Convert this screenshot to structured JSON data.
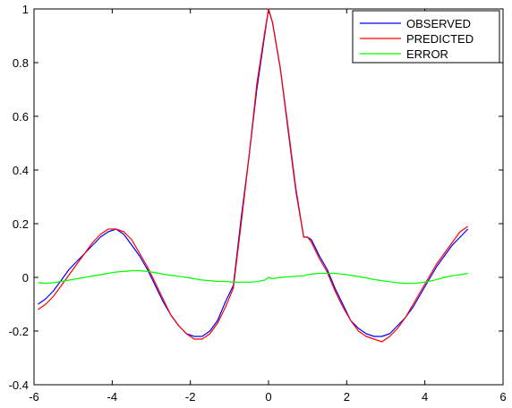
{
  "chart_data": {
    "type": "line",
    "title": "",
    "xlabel": "",
    "ylabel": "",
    "xlim": [
      -6,
      6
    ],
    "ylim": [
      -0.4,
      1
    ],
    "xticks": [
      -6,
      -4,
      -2,
      0,
      2,
      4,
      6
    ],
    "yticks": [
      -0.4,
      -0.2,
      0,
      0.2,
      0.4,
      0.6,
      0.8,
      1
    ],
    "xtick_labels": [
      "-6",
      "-4",
      "-2",
      "0",
      "2",
      "4",
      "6"
    ],
    "ytick_labels": [
      "-0.4",
      "-0.2",
      "0",
      "0.2",
      "0.4",
      "0.6",
      "0.8",
      "1"
    ],
    "grid": false,
    "legend_position": "top-right",
    "series": [
      {
        "name": "OBSERVED",
        "color": "#0000ff",
        "x": [
          -5.9,
          -5.7,
          -5.5,
          -5.3,
          -5.1,
          -4.9,
          -4.7,
          -4.5,
          -4.3,
          -4.1,
          -3.9,
          -3.7,
          -3.5,
          -3.3,
          -3.1,
          -2.9,
          -2.7,
          -2.5,
          -2.3,
          -2.1,
          -1.9,
          -1.7,
          -1.5,
          -1.3,
          -1.1,
          -0.9,
          -0.7,
          -0.5,
          -0.3,
          -0.1,
          0.0,
          0.1,
          0.3,
          0.5,
          0.7,
          0.9,
          1.0,
          1.1,
          1.3,
          1.5,
          1.7,
          1.9,
          2.1,
          2.3,
          2.5,
          2.7,
          2.9,
          3.1,
          3.3,
          3.5,
          3.7,
          3.9,
          4.1,
          4.3,
          4.5,
          4.7,
          4.9,
          5.1
        ],
        "values": [
          -0.1,
          -0.08,
          -0.05,
          -0.01,
          0.03,
          0.06,
          0.09,
          0.12,
          0.15,
          0.17,
          0.18,
          0.16,
          0.12,
          0.08,
          0.03,
          -0.03,
          -0.09,
          -0.14,
          -0.18,
          -0.21,
          -0.22,
          -0.22,
          -0.2,
          -0.16,
          -0.09,
          -0.03,
          0.22,
          0.45,
          0.7,
          0.9,
          1.0,
          0.95,
          0.78,
          0.55,
          0.32,
          0.15,
          0.15,
          0.14,
          0.08,
          0.03,
          -0.04,
          -0.1,
          -0.16,
          -0.19,
          -0.21,
          -0.22,
          -0.22,
          -0.21,
          -0.18,
          -0.15,
          -0.11,
          -0.06,
          -0.01,
          0.04,
          0.08,
          0.12,
          0.15,
          0.18
        ]
      },
      {
        "name": "PREDICTED",
        "color": "#ff0000",
        "x": [
          -5.9,
          -5.7,
          -5.5,
          -5.3,
          -5.1,
          -4.9,
          -4.7,
          -4.5,
          -4.3,
          -4.1,
          -3.9,
          -3.7,
          -3.5,
          -3.3,
          -3.1,
          -2.9,
          -2.7,
          -2.5,
          -2.3,
          -2.1,
          -1.9,
          -1.7,
          -1.5,
          -1.3,
          -1.1,
          -0.9,
          -0.7,
          -0.5,
          -0.3,
          -0.1,
          0.0,
          0.1,
          0.3,
          0.5,
          0.7,
          0.9,
          1.0,
          1.1,
          1.3,
          1.5,
          1.7,
          1.9,
          2.1,
          2.3,
          2.5,
          2.7,
          2.9,
          3.1,
          3.3,
          3.5,
          3.7,
          3.9,
          4.1,
          4.3,
          4.5,
          4.7,
          4.9,
          5.1
        ],
        "values": [
          -0.12,
          -0.1,
          -0.07,
          -0.03,
          0.01,
          0.05,
          0.09,
          0.13,
          0.16,
          0.18,
          0.18,
          0.17,
          0.14,
          0.09,
          0.04,
          -0.02,
          -0.08,
          -0.14,
          -0.18,
          -0.21,
          -0.23,
          -0.23,
          -0.21,
          -0.17,
          -0.11,
          -0.04,
          0.2,
          0.45,
          0.72,
          0.91,
          1.0,
          0.95,
          0.78,
          0.56,
          0.33,
          0.15,
          0.15,
          0.13,
          0.07,
          0.02,
          -0.05,
          -0.11,
          -0.16,
          -0.2,
          -0.22,
          -0.23,
          -0.24,
          -0.22,
          -0.19,
          -0.15,
          -0.1,
          -0.05,
          0.0,
          0.05,
          0.09,
          0.13,
          0.17,
          0.19
        ]
      },
      {
        "name": "ERROR",
        "color": "#00ff00",
        "x": [
          -5.9,
          -5.7,
          -5.5,
          -5.3,
          -5.1,
          -4.9,
          -4.7,
          -4.5,
          -4.3,
          -4.1,
          -3.9,
          -3.7,
          -3.5,
          -3.3,
          -3.1,
          -2.9,
          -2.7,
          -2.5,
          -2.3,
          -2.1,
          -1.9,
          -1.7,
          -1.5,
          -1.3,
          -1.1,
          -0.9,
          -0.7,
          -0.5,
          -0.3,
          -0.1,
          0.0,
          0.1,
          0.3,
          0.5,
          0.7,
          0.9,
          1.0,
          1.1,
          1.3,
          1.5,
          1.7,
          1.9,
          2.1,
          2.3,
          2.5,
          2.7,
          2.9,
          3.1,
          3.3,
          3.5,
          3.7,
          3.9,
          4.1,
          4.3,
          4.5,
          4.7,
          4.9,
          5.1
        ],
        "values": [
          -0.02,
          -0.022,
          -0.02,
          -0.015,
          -0.01,
          -0.005,
          0.0,
          0.005,
          0.01,
          0.015,
          0.02,
          0.022,
          0.025,
          0.025,
          0.022,
          0.018,
          0.012,
          0.008,
          0.004,
          0.0,
          -0.005,
          -0.01,
          -0.012,
          -0.015,
          -0.015,
          -0.018,
          -0.018,
          -0.018,
          -0.016,
          -0.01,
          0.0,
          -0.005,
          0.0,
          0.002,
          0.004,
          0.006,
          0.01,
          0.012,
          0.015,
          0.015,
          0.015,
          0.012,
          0.008,
          0.003,
          -0.002,
          -0.008,
          -0.012,
          -0.016,
          -0.02,
          -0.022,
          -0.022,
          -0.02,
          -0.015,
          -0.008,
          0.0,
          0.006,
          0.01,
          0.015
        ]
      }
    ]
  },
  "colors": {
    "axes": "#000000",
    "background": "#ffffff",
    "legend_border": "#000000"
  }
}
